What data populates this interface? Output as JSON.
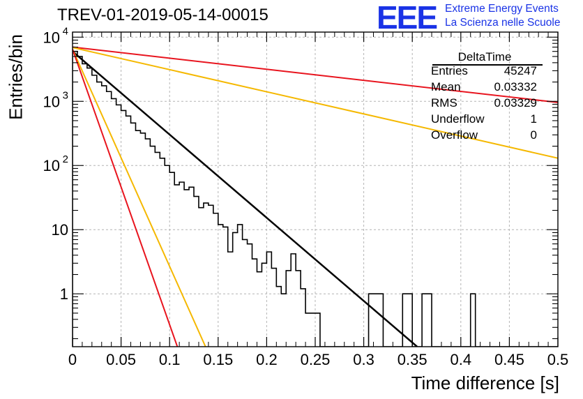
{
  "title": "TREV-01-2019-05-14-00015",
  "logo": {
    "mark": "EEE",
    "line1": "Extreme Energy Events",
    "line2": "La Scienza nelle Scuole"
  },
  "stats": {
    "name": "DeltaTime",
    "rows": [
      {
        "label": "Entries",
        "value": "45247"
      },
      {
        "label": "Mean",
        "value": "0.03332"
      },
      {
        "label": "RMS",
        "value": "0.03329"
      },
      {
        "label": "Underflow",
        "value": "1"
      },
      {
        "label": "Overflow",
        "value": "0"
      }
    ]
  },
  "colors": {
    "histogram": "#000000",
    "fit": "#000000",
    "red_lines": "#e8141e",
    "orange_lines": "#f5b800",
    "grid": "#b4b4b4",
    "logo": "#1a33e6"
  },
  "chart_data": {
    "type": "line",
    "xlabel": "Time difference [s]",
    "ylabel": "Entries/bin",
    "xlim": [
      0,
      0.5
    ],
    "ylim": [
      0.15,
      12000
    ],
    "y_log": true,
    "grid": true,
    "x_ticks": [
      "0",
      "0.05",
      "0.1",
      "0.15",
      "0.2",
      "0.25",
      "0.3",
      "0.35",
      "0.4",
      "0.45",
      "0.5"
    ],
    "y_ticks": [
      {
        "value": 1,
        "label": "1"
      },
      {
        "value": 10,
        "label": "10"
      },
      {
        "value": 100,
        "label": "10",
        "exp": "2"
      },
      {
        "value": 1000,
        "label": "10",
        "exp": "3"
      },
      {
        "value": 10000,
        "label": "10",
        "exp": "4"
      }
    ],
    "histogram": {
      "bin_width": 0.005,
      "bin_start": 0,
      "values": [
        6000,
        5000,
        3850,
        3300,
        2550,
        2000,
        1750,
        1420,
        1100,
        880,
        720,
        590,
        460,
        350,
        320,
        260,
        200,
        160,
        130,
        100,
        78,
        50,
        55,
        42,
        46,
        33,
        22,
        26,
        24,
        18,
        12,
        11,
        4.5,
        9,
        12,
        7,
        6,
        3.5,
        2.2,
        3,
        4.5,
        2.5,
        1.3,
        1,
        2.3,
        4.2,
        2.3,
        1.2,
        0.5,
        0.5,
        0.5,
        0.05,
        0.05,
        0.05,
        0.05,
        0.05,
        0.05,
        0.05,
        0.05,
        0.05,
        0.05,
        1,
        1,
        1,
        0.05,
        0.05,
        0.05,
        0.05,
        1,
        1,
        0.05,
        0.05,
        1,
        1,
        0.05,
        0.05,
        0.05,
        0.05,
        0.05,
        0.05,
        0.05,
        0.05,
        1,
        0.05,
        0.05,
        0.05,
        0.05,
        0.05,
        0.05,
        0.05,
        0.05,
        0.05,
        0.05,
        0.05,
        0.05,
        0.05,
        0.05,
        0.05,
        0.05,
        0.05,
        0.05
      ],
      "mask_note": ""
    },
    "lines": [
      {
        "role": "fit",
        "color_key": "fit",
        "width": 2.5,
        "x": [
          0,
          0.355
        ],
        "y": [
          6000,
          0.15
        ]
      },
      {
        "role": "red-flat",
        "color_key": "red_lines",
        "width": 2,
        "x": [
          0,
          0.5
        ],
        "y": [
          7000,
          960
        ]
      },
      {
        "role": "orange-flat",
        "color_key": "orange_lines",
        "width": 2,
        "x": [
          0,
          0.5
        ],
        "y": [
          6900,
          130
        ]
      },
      {
        "role": "orange-steep",
        "color_key": "orange_lines",
        "width": 2,
        "x": [
          0,
          0.137
        ],
        "y": [
          6500,
          0.15
        ]
      },
      {
        "role": "red-steep",
        "color_key": "red_lines",
        "width": 2,
        "x": [
          0,
          0.108
        ],
        "y": [
          6500,
          0.15
        ]
      }
    ]
  }
}
